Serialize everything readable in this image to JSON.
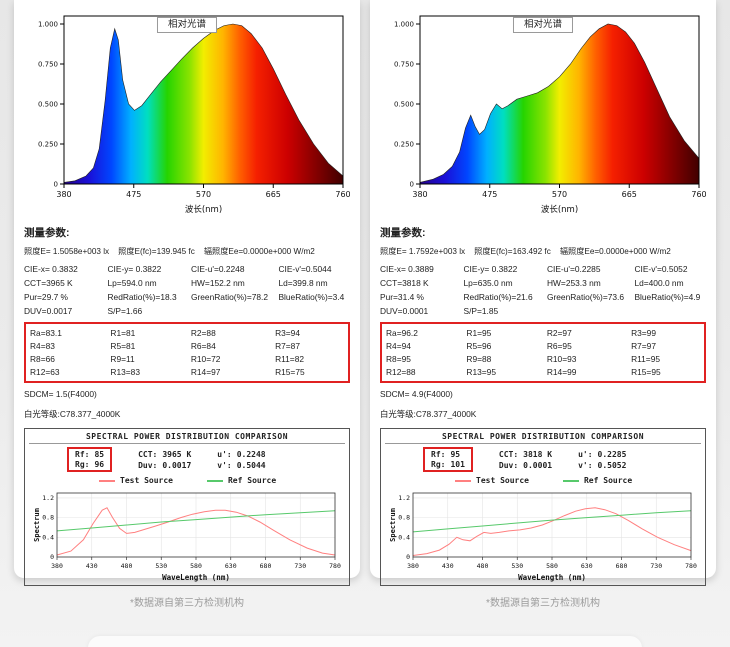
{
  "colors": {
    "highlight_box": "#e02121",
    "test_source": "#ff8080",
    "ref_source": "#57c96b"
  },
  "panels": [
    {
      "measurement": {
        "heading": "测量参数:",
        "illuminance": [
          "照度E=  1.5058e+003 lx",
          "照度E(fc)=139.945 fc",
          "辐照度Ee=0.0000e+000 W/m2"
        ],
        "grid": [
          "CIE-x= 0.3832",
          "CIE-y= 0.3822",
          "CIE-u'=0.2248",
          "CIE-v'=0.5044",
          "CCT=3965 K",
          "Lp=594.0 nm",
          "HW=152.2 nm",
          "Ld=399.8 nm",
          "Pur=29.7 %",
          "RedRatio(%)=18.3",
          "GreenRatio(%)=78.2",
          "BlueRatio(%)=3.4",
          "DUV=0.0017",
          "S/P=1.66",
          "",
          ""
        ],
        "cri": [
          "Ra=83.1",
          "R1=81",
          "R2=88",
          "R3=94",
          "R4=83",
          "R5=81",
          "R6=84",
          "R7=87",
          "R8=66",
          "R9=11",
          "R10=72",
          "R11=82",
          "R12=63",
          "R13=83",
          "R14=97",
          "R15=75"
        ],
        "sdcm": "SDCM= 1.5(F4000)",
        "white_grade": "白光等级:C78.377_4000K"
      },
      "comparison": {
        "metrics": {
          "rf_label": "Rf:",
          "rf": "85",
          "rg_label": "Rg:",
          "rg": "96",
          "cct_label": "CCT:",
          "cct": "3965 K",
          "duv_label": "Duv:",
          "duv": "0.0017",
          "u_label": "u':",
          "u": "0.2248",
          "v_label": "v':",
          "v": "0.5044"
        }
      },
      "footer_note": "*数据源自第三方检测机构"
    },
    {
      "measurement": {
        "heading": "测量参数:",
        "illuminance": [
          "照度E=  1.7592e+003 lx",
          "照度E(fc)=163.492 fc",
          "辐照度Ee=0.0000e+000 W/m2"
        ],
        "grid": [
          "CIE-x= 0.3889",
          "CIE-y= 0.3822",
          "CIE-u'=0.2285",
          "CIE-v'=0.5052",
          "CCT=3818 K",
          "Lp=635.0 nm",
          "HW=253.3 nm",
          "Ld=400.0 nm",
          "Pur=31.4 %",
          "RedRatio(%)=21.6",
          "GreenRatio(%)=73.6",
          "BlueRatio(%)=4.9",
          "DUV=0.0001",
          "S/P=1.85",
          "",
          ""
        ],
        "cri": [
          "Ra=96.2",
          "R1=95",
          "R2=97",
          "R3=99",
          "R4=94",
          "R5=96",
          "R6=95",
          "R7=97",
          "R8=95",
          "R9=88",
          "R10=93",
          "R11=95",
          "R12=88",
          "R13=95",
          "R14=99",
          "R15=95"
        ],
        "sdcm": "SDCM= 4.9(F4000)",
        "white_grade": "白光等级:C78.377_4000K"
      },
      "comparison": {
        "metrics": {
          "rf_label": "Rf:",
          "rf": "95",
          "rg_label": "Rg:",
          "rg": "101",
          "cct_label": "CCT:",
          "cct": "3818 K",
          "duv_label": "Duv:",
          "duv": "0.0001",
          "u_label": "u':",
          "u": "0.2285",
          "v_label": "v':",
          "v": "0.5052"
        }
      },
      "footer_note": "*数据源自第三方检测机构"
    }
  ],
  "chart_data": [
    {
      "id": "spectrum-left",
      "type": "area",
      "title": "相对光谱",
      "xlabel": "波长(nm)",
      "xlim": [
        380,
        760
      ],
      "ylim": [
        0,
        1.05
      ],
      "x_ticks": [
        380,
        475,
        570,
        665,
        760
      ],
      "y_ticks": [
        0,
        0.25,
        0.5,
        0.75,
        1.0
      ],
      "y_tick_labels": [
        "0",
        "0.250",
        "0.500",
        "0.750",
        "1.000"
      ],
      "x": [
        380,
        395,
        410,
        420,
        428,
        436,
        443,
        449,
        454,
        460,
        468,
        476,
        486,
        498,
        512,
        526,
        540,
        555,
        570,
        585,
        598,
        610,
        622,
        635,
        650,
        665,
        682,
        700,
        720,
        740,
        760
      ],
      "y": [
        0.01,
        0.02,
        0.05,
        0.1,
        0.22,
        0.52,
        0.85,
        0.97,
        0.9,
        0.65,
        0.5,
        0.46,
        0.49,
        0.56,
        0.64,
        0.71,
        0.78,
        0.85,
        0.91,
        0.96,
        0.99,
        1.0,
        0.99,
        0.94,
        0.85,
        0.72,
        0.56,
        0.4,
        0.25,
        0.13,
        0.05
      ],
      "gradient": [
        [
          0,
          "#25008c"
        ],
        [
          0.09,
          "#1a10d8"
        ],
        [
          0.17,
          "#0046ff"
        ],
        [
          0.24,
          "#00b0ff"
        ],
        [
          0.3,
          "#00dfc0"
        ],
        [
          0.37,
          "#25d400"
        ],
        [
          0.45,
          "#8ae300"
        ],
        [
          0.5,
          "#f2ee00"
        ],
        [
          0.57,
          "#ffb400"
        ],
        [
          0.63,
          "#ff6000"
        ],
        [
          0.69,
          "#f52000"
        ],
        [
          0.8,
          "#cd0000"
        ],
        [
          1,
          "#400000"
        ]
      ]
    },
    {
      "id": "spectrum-right",
      "type": "area",
      "title": "相对光谱",
      "xlabel": "波长(nm)",
      "xlim": [
        380,
        760
      ],
      "ylim": [
        0,
        1.05
      ],
      "x_ticks": [
        380,
        475,
        570,
        665,
        760
      ],
      "y_ticks": [
        0,
        0.25,
        0.5,
        0.75,
        1.0
      ],
      "y_tick_labels": [
        "0",
        "0.250",
        "0.500",
        "0.750",
        "1.000"
      ],
      "x": [
        380,
        398,
        412,
        424,
        434,
        442,
        449,
        455,
        461,
        468,
        476,
        484,
        492,
        500,
        512,
        526,
        540,
        555,
        570,
        585,
        600,
        612,
        624,
        636,
        648,
        660,
        672,
        686,
        702,
        720,
        740,
        760
      ],
      "y": [
        0.01,
        0.03,
        0.06,
        0.11,
        0.2,
        0.35,
        0.43,
        0.36,
        0.31,
        0.34,
        0.44,
        0.5,
        0.47,
        0.49,
        0.53,
        0.55,
        0.57,
        0.61,
        0.67,
        0.75,
        0.85,
        0.92,
        0.97,
        1.0,
        0.99,
        0.95,
        0.88,
        0.76,
        0.6,
        0.42,
        0.27,
        0.16
      ],
      "gradient": [
        [
          0,
          "#25008c"
        ],
        [
          0.09,
          "#1a10d8"
        ],
        [
          0.17,
          "#0046ff"
        ],
        [
          0.24,
          "#00b0ff"
        ],
        [
          0.3,
          "#00dfc0"
        ],
        [
          0.37,
          "#25d400"
        ],
        [
          0.45,
          "#8ae300"
        ],
        [
          0.5,
          "#f2ee00"
        ],
        [
          0.57,
          "#ffb400"
        ],
        [
          0.63,
          "#ff6000"
        ],
        [
          0.69,
          "#f52000"
        ],
        [
          0.8,
          "#cd0000"
        ],
        [
          1,
          "#400000"
        ]
      ]
    },
    {
      "id": "comparison-left",
      "type": "line",
      "title": "SPECTRAL POWER DISTRIBUTION COMPARISON",
      "xlabel": "WaveLength (nm)",
      "ylabel": "Spectrum",
      "xlim": [
        380,
        780
      ],
      "ylim": [
        0,
        1.3
      ],
      "x_ticks": [
        380,
        430,
        480,
        530,
        580,
        630,
        680,
        730,
        780
      ],
      "y_ticks": [
        0,
        0.4,
        0.8,
        1.2
      ],
      "series": [
        {
          "name": "Test Source",
          "color": "#ff8080",
          "x": [
            380,
            400,
            418,
            432,
            445,
            452,
            460,
            470,
            480,
            492,
            506,
            522,
            540,
            558,
            575,
            592,
            608,
            622,
            638,
            655,
            672,
            692,
            715,
            740,
            762,
            780
          ],
          "y": [
            0.04,
            0.12,
            0.35,
            0.68,
            0.95,
            1.0,
            0.8,
            0.58,
            0.48,
            0.5,
            0.56,
            0.63,
            0.71,
            0.8,
            0.87,
            0.92,
            0.95,
            0.95,
            0.91,
            0.83,
            0.71,
            0.54,
            0.35,
            0.18,
            0.08,
            0.04
          ]
        },
        {
          "name": "Ref Source",
          "color": "#57c96b",
          "x": [
            380,
            430,
            480,
            530,
            580,
            630,
            680,
            730,
            780
          ],
          "y": [
            0.53,
            0.59,
            0.65,
            0.71,
            0.76,
            0.81,
            0.86,
            0.9,
            0.94
          ]
        }
      ]
    },
    {
      "id": "comparison-right",
      "type": "line",
      "title": "SPECTRAL POWER DISTRIBUTION COMPARISON",
      "xlabel": "WaveLength (nm)",
      "ylabel": "Spectrum",
      "xlim": [
        380,
        780
      ],
      "ylim": [
        0,
        1.3
      ],
      "x_ticks": [
        380,
        430,
        480,
        530,
        580,
        630,
        680,
        730,
        780
      ],
      "y_ticks": [
        0,
        0.4,
        0.8,
        1.2
      ],
      "series": [
        {
          "name": "Test Source",
          "color": "#ff8080",
          "x": [
            380,
            400,
            418,
            432,
            443,
            452,
            462,
            472,
            482,
            492,
            504,
            518,
            534,
            550,
            566,
            582,
            598,
            614,
            628,
            642,
            656,
            672,
            690,
            710,
            732,
            756,
            780
          ],
          "y": [
            0.03,
            0.07,
            0.14,
            0.26,
            0.4,
            0.35,
            0.33,
            0.42,
            0.5,
            0.48,
            0.5,
            0.53,
            0.55,
            0.59,
            0.65,
            0.74,
            0.84,
            0.93,
            0.98,
            1.0,
            0.96,
            0.88,
            0.74,
            0.57,
            0.4,
            0.25,
            0.13
          ]
        },
        {
          "name": "Ref Source",
          "color": "#57c96b",
          "x": [
            380,
            430,
            480,
            530,
            580,
            630,
            680,
            730,
            780
          ],
          "y": [
            0.51,
            0.57,
            0.63,
            0.69,
            0.75,
            0.8,
            0.85,
            0.9,
            0.94
          ]
        }
      ]
    }
  ]
}
